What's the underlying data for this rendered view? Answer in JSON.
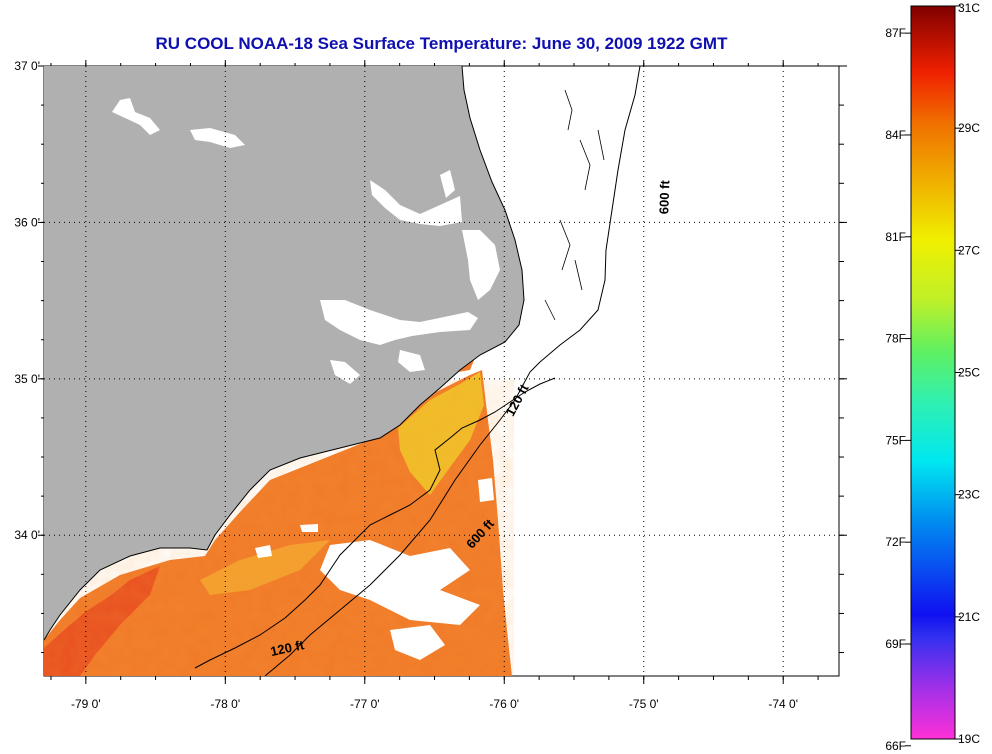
{
  "title": "RU COOL  NOAA-18  Sea Surface Temperature:  June 30, 2009 1922 GMT",
  "map": {
    "lon_range": [
      -79.3,
      -73.6
    ],
    "lat_range": [
      33.1,
      37.0
    ],
    "lat_labels": [
      {
        "lat": 37.0,
        "label": "37 0'"
      },
      {
        "lat": 36.0,
        "label": "36 0'"
      },
      {
        "lat": 35.0,
        "label": "35 0'"
      },
      {
        "lat": 34.0,
        "label": "34 0'"
      }
    ],
    "lon_labels": [
      {
        "lon": -79.0,
        "label": "-79 0'"
      },
      {
        "lon": -78.0,
        "label": "-78 0'"
      },
      {
        "lon": -77.0,
        "label": "-77 0'"
      },
      {
        "lon": -76.0,
        "label": "-76 0'"
      },
      {
        "lon": -75.0,
        "label": "-75 0'"
      },
      {
        "lon": -74.0,
        "label": "-74 0'"
      }
    ],
    "contour_labels": [
      {
        "text": "600 ft",
        "lon": -74.82,
        "lat": 36.16,
        "angle": -88
      },
      {
        "text": "120 ft",
        "lon": -75.88,
        "lat": 34.85,
        "angle": -62
      },
      {
        "text": "600 ft",
        "lon": -76.15,
        "lat": 33.99,
        "angle": -48
      },
      {
        "text": "120 ft",
        "lon": -77.55,
        "lat": 33.25,
        "angle": -12
      }
    ],
    "colors": {
      "land": "#b0b0b0",
      "ocean_missing": "#ffffff",
      "sst_warm": "#f07a28",
      "sst_hot": "#e85020",
      "sst_yellow": "#f0d028"
    }
  },
  "colorbar": {
    "fahrenheit_labels": [
      "87F",
      "84F",
      "81F",
      "78F",
      "75F",
      "72F",
      "69F",
      "66F"
    ],
    "celsius_labels": [
      "31C",
      "29C",
      "27C",
      "25C",
      "23C",
      "21C",
      "19C"
    ],
    "c_min": 19,
    "c_max": 31
  }
}
